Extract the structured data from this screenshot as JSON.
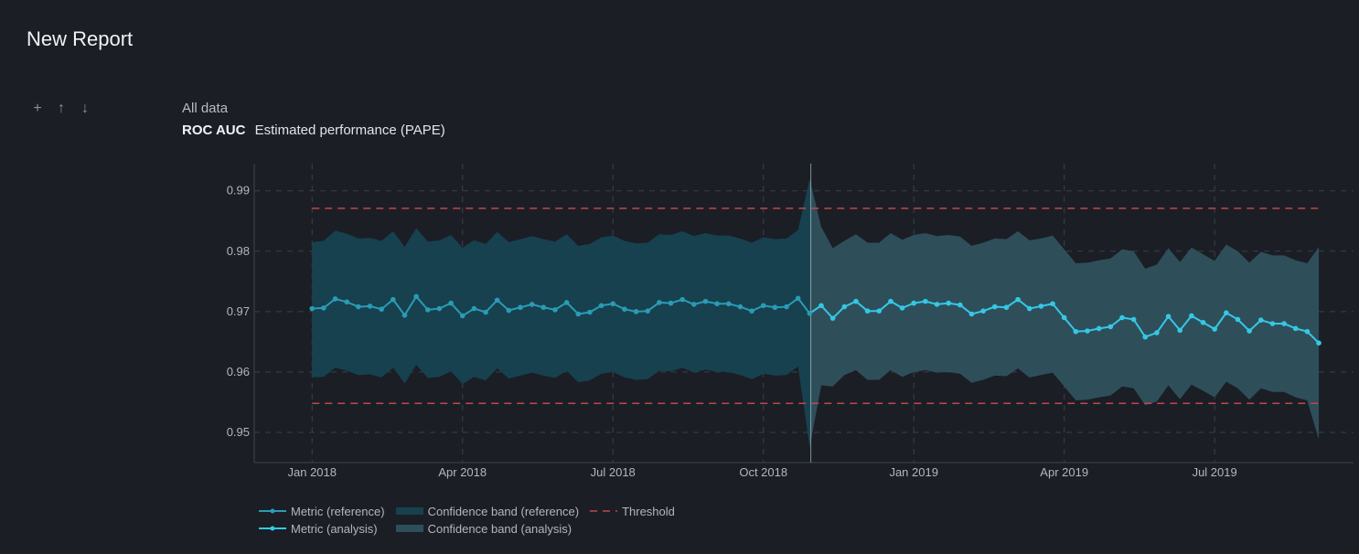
{
  "report": {
    "title": "New Report"
  },
  "toolbar": {
    "add_icon": "plus-icon",
    "up_icon": "arrow-up-icon",
    "down_icon": "arrow-down-icon",
    "add_glyph": "+",
    "up_glyph": "↑",
    "down_glyph": "↓"
  },
  "section": {
    "label": "All data",
    "metric": "ROC AUC",
    "description": "Estimated performance (PAPE)"
  },
  "colors": {
    "background": "#1b1e25",
    "metric_reference": "#2a9bb5",
    "metric_analysis": "#35c8e6",
    "band_reference": "#17414e",
    "band_analysis": "#2e4f5a",
    "threshold": "#c0474c",
    "grid": "#3a3f4a"
  },
  "legend": {
    "metric_reference": "Metric (reference)",
    "metric_analysis": "Metric (analysis)",
    "band_reference": "Confidence band (reference)",
    "band_analysis": "Confidence band (analysis)",
    "threshold": "Threshold"
  },
  "chart_data": {
    "type": "line",
    "title": "",
    "xlabel": "",
    "ylabel": "",
    "x_tick_labels": [
      "Jan 2018",
      "Apr 2018",
      "Jul 2018",
      "Oct 2018",
      "Jan 2019",
      "Apr 2019",
      "Jul 2019"
    ],
    "x_tick_positions": [
      0,
      13,
      26,
      39,
      52,
      65,
      78
    ],
    "y_ticks": [
      0.95,
      0.96,
      0.97,
      0.98,
      0.99
    ],
    "ylim": [
      0.945,
      0.9945
    ],
    "xlim": [
      -5,
      90
    ],
    "grid": true,
    "period_split": 43,
    "thresholds": {
      "upper": 0.9871,
      "lower": 0.9548
    },
    "series": [
      {
        "name": "Metric (reference)",
        "x_start": 0,
        "values": [
          0.9705,
          0.9706,
          0.9721,
          0.9716,
          0.9708,
          0.9709,
          0.9704,
          0.972,
          0.9694,
          0.9725,
          0.9703,
          0.9705,
          0.9714,
          0.9693,
          0.9705,
          0.9699,
          0.9719,
          0.9702,
          0.9707,
          0.9712,
          0.9707,
          0.9703,
          0.9715,
          0.9696,
          0.9699,
          0.971,
          0.9713,
          0.9704,
          0.97,
          0.9701,
          0.9715,
          0.9714,
          0.972,
          0.9712,
          0.9717,
          0.9713,
          0.9713,
          0.9708,
          0.9701,
          0.971,
          0.9707,
          0.9708,
          0.9722,
          0.9697
        ],
        "band_upper": [
          0.9815,
          0.9817,
          0.9834,
          0.9829,
          0.9821,
          0.9822,
          0.9817,
          0.9833,
          0.9807,
          0.9838,
          0.9816,
          0.9818,
          0.9827,
          0.9806,
          0.9818,
          0.9812,
          0.9832,
          0.9815,
          0.982,
          0.9825,
          0.982,
          0.9816,
          0.9828,
          0.9809,
          0.9812,
          0.9823,
          0.9826,
          0.9817,
          0.9813,
          0.9814,
          0.9828,
          0.9827,
          0.9833,
          0.9825,
          0.983,
          0.9826,
          0.9826,
          0.9821,
          0.9814,
          0.9823,
          0.982,
          0.9821,
          0.9835,
          0.992
        ],
        "band_lower": [
          0.9591,
          0.9592,
          0.9607,
          0.9602,
          0.9595,
          0.9596,
          0.9591,
          0.9607,
          0.9581,
          0.9612,
          0.959,
          0.9592,
          0.9601,
          0.958,
          0.9592,
          0.9586,
          0.9606,
          0.9589,
          0.9594,
          0.9599,
          0.9594,
          0.959,
          0.9602,
          0.9583,
          0.9586,
          0.9597,
          0.96,
          0.9591,
          0.9587,
          0.9588,
          0.9602,
          0.9601,
          0.9607,
          0.9599,
          0.9604,
          0.96,
          0.96,
          0.9595,
          0.9588,
          0.9597,
          0.9594,
          0.9595,
          0.9609,
          0.9475
        ]
      },
      {
        "name": "Metric (analysis)",
        "x_start": 44,
        "values": [
          0.971,
          0.9689,
          0.9708,
          0.9717,
          0.9701,
          0.9701,
          0.9717,
          0.9706,
          0.9714,
          0.9717,
          0.9712,
          0.9714,
          0.9711,
          0.9696,
          0.9701,
          0.9708,
          0.9707,
          0.972,
          0.9705,
          0.9709,
          0.9713,
          0.969,
          0.9667,
          0.9668,
          0.9672,
          0.9675,
          0.969,
          0.9687,
          0.9658,
          0.9665,
          0.9692,
          0.9669,
          0.9693,
          0.9682,
          0.9671,
          0.9698,
          0.9687,
          0.9668,
          0.9686,
          0.968,
          0.968,
          0.9672,
          0.9667,
          0.9648
        ],
        "band_upper": [
          0.984,
          0.9805,
          0.9817,
          0.9828,
          0.9814,
          0.9814,
          0.983,
          0.9819,
          0.9827,
          0.983,
          0.9825,
          0.9827,
          0.9824,
          0.9809,
          0.9814,
          0.9821,
          0.982,
          0.9833,
          0.9818,
          0.9821,
          0.9826,
          0.9803,
          0.978,
          0.9781,
          0.9785,
          0.9788,
          0.9803,
          0.98,
          0.9771,
          0.9778,
          0.9805,
          0.9782,
          0.9806,
          0.9795,
          0.9784,
          0.9811,
          0.98,
          0.9781,
          0.9799,
          0.9793,
          0.9793,
          0.9785,
          0.978,
          0.9807
        ],
        "band_lower": [
          0.9578,
          0.9576,
          0.9595,
          0.9603,
          0.9587,
          0.9587,
          0.9603,
          0.9592,
          0.96,
          0.9603,
          0.9599,
          0.96,
          0.9597,
          0.9582,
          0.9587,
          0.9594,
          0.9593,
          0.9606,
          0.9591,
          0.9595,
          0.9599,
          0.9576,
          0.9553,
          0.9554,
          0.9558,
          0.9561,
          0.9576,
          0.9573,
          0.9545,
          0.9551,
          0.9578,
          0.9555,
          0.9579,
          0.9569,
          0.9558,
          0.9584,
          0.9573,
          0.9554,
          0.9573,
          0.9567,
          0.9567,
          0.9558,
          0.9553,
          0.9488
        ]
      }
    ]
  }
}
